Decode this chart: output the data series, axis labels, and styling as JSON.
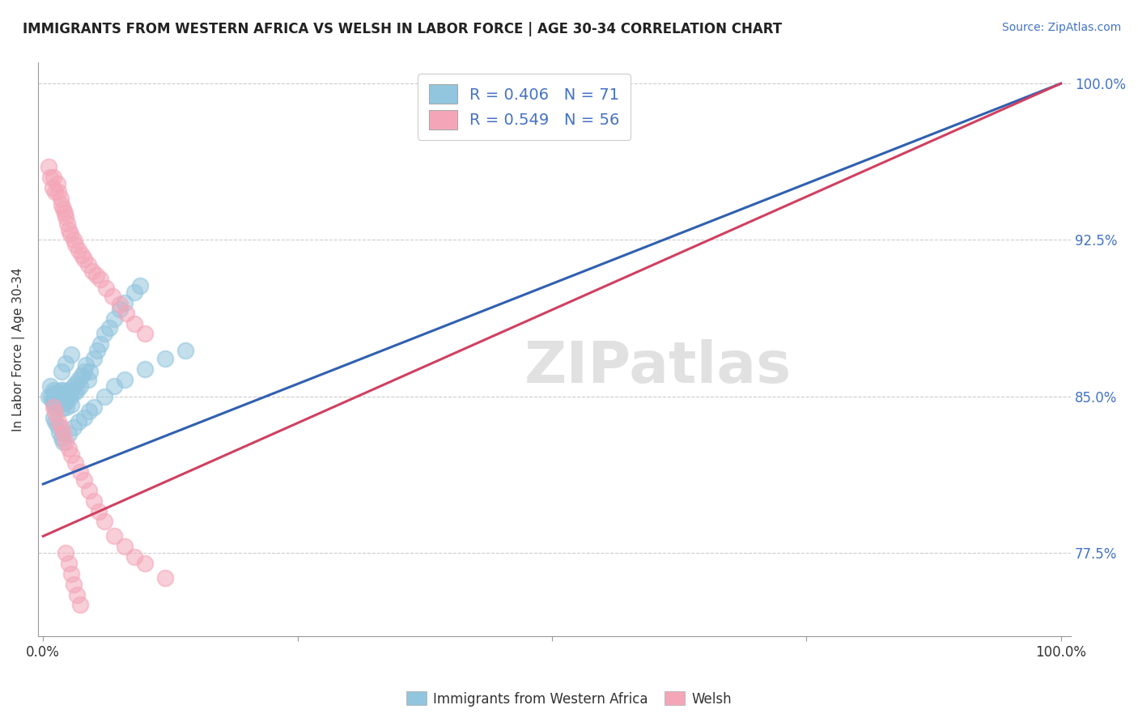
{
  "title": "IMMIGRANTS FROM WESTERN AFRICA VS WELSH IN LABOR FORCE | AGE 30-34 CORRELATION CHART",
  "source": "Source: ZipAtlas.com",
  "ylabel": "In Labor Force | Age 30-34",
  "xlim": [
    -0.005,
    1.01
  ],
  "ylim": [
    0.735,
    1.01
  ],
  "yticks": [
    0.775,
    0.85,
    0.925,
    1.0
  ],
  "ytick_labels": [
    "77.5%",
    "85.0%",
    "92.5%",
    "100.0%"
  ],
  "xticks": [
    0.0,
    0.25,
    0.5,
    0.75,
    1.0
  ],
  "xtick_labels": [
    "0.0%",
    "",
    "",
    "",
    "100.0%"
  ],
  "legend_label1": "R = 0.406   N = 71",
  "legend_label2": "R = 0.549   N = 56",
  "blue_color": "#92c5de",
  "pink_color": "#f4a6b8",
  "blue_line_color": "#3060b0",
  "pink_line_color": "#d04060",
  "watermark_text": "ZIPatlas",
  "blue_line_x0": 0.0,
  "blue_line_y0": 0.808,
  "blue_line_x1": 1.0,
  "blue_line_y1": 1.0,
  "pink_line_x0": 0.0,
  "pink_line_y0": 0.783,
  "pink_line_x1": 1.0,
  "pink_line_y1": 1.0,
  "blue_dots_x": [
    0.005,
    0.007,
    0.008,
    0.009,
    0.01,
    0.01,
    0.011,
    0.012,
    0.012,
    0.013,
    0.014,
    0.015,
    0.015,
    0.016,
    0.017,
    0.018,
    0.018,
    0.019,
    0.02,
    0.02,
    0.021,
    0.022,
    0.023,
    0.023,
    0.024,
    0.025,
    0.026,
    0.027,
    0.028,
    0.03,
    0.031,
    0.032,
    0.033,
    0.035,
    0.036,
    0.038,
    0.04,
    0.042,
    0.044,
    0.046,
    0.05,
    0.053,
    0.056,
    0.06,
    0.065,
    0.07,
    0.075,
    0.08,
    0.09,
    0.095,
    0.01,
    0.012,
    0.014,
    0.016,
    0.018,
    0.02,
    0.025,
    0.03,
    0.035,
    0.04,
    0.045,
    0.05,
    0.06,
    0.07,
    0.08,
    0.1,
    0.12,
    0.14,
    0.018,
    0.022,
    0.028
  ],
  "blue_dots_y": [
    0.85,
    0.855,
    0.85,
    0.848,
    0.853,
    0.847,
    0.852,
    0.849,
    0.845,
    0.85,
    0.848,
    0.852,
    0.846,
    0.849,
    0.853,
    0.848,
    0.844,
    0.85,
    0.848,
    0.853,
    0.847,
    0.851,
    0.848,
    0.845,
    0.85,
    0.853,
    0.849,
    0.852,
    0.846,
    0.855,
    0.852,
    0.856,
    0.853,
    0.858,
    0.855,
    0.86,
    0.862,
    0.865,
    0.858,
    0.862,
    0.868,
    0.872,
    0.875,
    0.88,
    0.883,
    0.887,
    0.892,
    0.895,
    0.9,
    0.903,
    0.84,
    0.838,
    0.836,
    0.833,
    0.83,
    0.828,
    0.832,
    0.835,
    0.838,
    0.84,
    0.843,
    0.845,
    0.85,
    0.855,
    0.858,
    0.863,
    0.868,
    0.872,
    0.862,
    0.866,
    0.87
  ],
  "pink_dots_x": [
    0.005,
    0.007,
    0.009,
    0.01,
    0.012,
    0.014,
    0.015,
    0.017,
    0.018,
    0.02,
    0.021,
    0.022,
    0.024,
    0.025,
    0.027,
    0.03,
    0.032,
    0.035,
    0.038,
    0.04,
    0.044,
    0.048,
    0.052,
    0.056,
    0.062,
    0.068,
    0.075,
    0.082,
    0.09,
    0.1,
    0.01,
    0.012,
    0.015,
    0.018,
    0.02,
    0.022,
    0.025,
    0.028,
    0.032,
    0.036,
    0.04,
    0.045,
    0.05,
    0.055,
    0.06,
    0.07,
    0.08,
    0.09,
    0.1,
    0.12,
    0.022,
    0.025,
    0.028,
    0.03,
    0.033,
    0.036
  ],
  "pink_dots_y": [
    0.96,
    0.955,
    0.95,
    0.955,
    0.948,
    0.952,
    0.948,
    0.945,
    0.942,
    0.94,
    0.938,
    0.936,
    0.933,
    0.93,
    0.928,
    0.925,
    0.923,
    0.92,
    0.918,
    0.916,
    0.913,
    0.91,
    0.908,
    0.906,
    0.902,
    0.898,
    0.894,
    0.89,
    0.885,
    0.88,
    0.845,
    0.842,
    0.838,
    0.835,
    0.832,
    0.828,
    0.825,
    0.822,
    0.818,
    0.814,
    0.81,
    0.805,
    0.8,
    0.795,
    0.79,
    0.783,
    0.778,
    0.773,
    0.77,
    0.763,
    0.775,
    0.77,
    0.765,
    0.76,
    0.755,
    0.75
  ]
}
